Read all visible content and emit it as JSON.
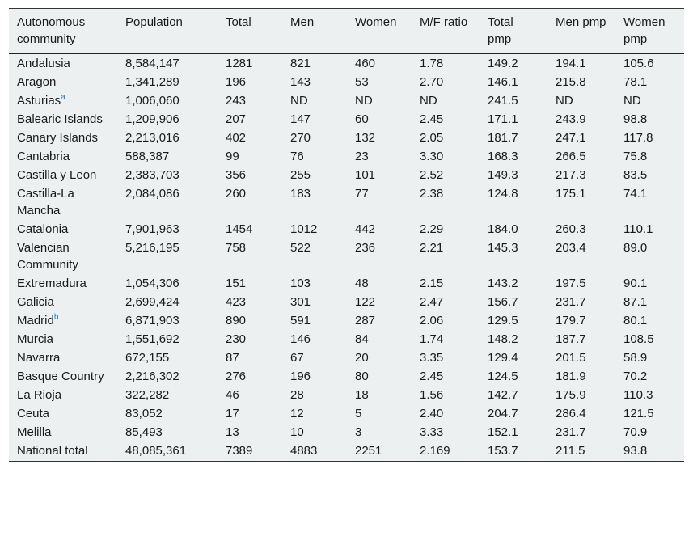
{
  "table": {
    "headers": [
      "Autonomous community",
      "Population",
      "Total",
      "Men",
      "Women",
      "M/F ratio",
      "Total pmp",
      "Men pmp",
      "Women pmp"
    ],
    "rows": [
      {
        "community": "Andalusia",
        "sup": "",
        "population": "8,584,147",
        "total": "1281",
        "men": "821",
        "women": "460",
        "mf_ratio": "1.78",
        "total_pmp": "149.2",
        "men_pmp": "194.1",
        "women_pmp": "105.6"
      },
      {
        "community": "Aragon",
        "sup": "",
        "population": "1,341,289",
        "total": "196",
        "men": "143",
        "women": "53",
        "mf_ratio": "2.70",
        "total_pmp": "146.1",
        "men_pmp": "215.8",
        "women_pmp": "78.1"
      },
      {
        "community": "Asturias",
        "sup": "a",
        "population": "1,006,060",
        "total": "243",
        "men": "ND",
        "women": "ND",
        "mf_ratio": "ND",
        "total_pmp": "241.5",
        "men_pmp": "ND",
        "women_pmp": "ND"
      },
      {
        "community": "Balearic Islands",
        "sup": "",
        "population": "1,209,906",
        "total": "207",
        "men": "147",
        "women": "60",
        "mf_ratio": "2.45",
        "total_pmp": "171.1",
        "men_pmp": "243.9",
        "women_pmp": "98.8"
      },
      {
        "community": "Canary Islands",
        "sup": "",
        "population": "2,213,016",
        "total": "402",
        "men": "270",
        "women": "132",
        "mf_ratio": "2.05",
        "total_pmp": "181.7",
        "men_pmp": "247.1",
        "women_pmp": "117.8"
      },
      {
        "community": "Cantabria",
        "sup": "",
        "population": "588,387",
        "total": "99",
        "men": "76",
        "women": "23",
        "mf_ratio": "3.30",
        "total_pmp": "168.3",
        "men_pmp": "266.5",
        "women_pmp": "75.8"
      },
      {
        "community": "Castilla y Leon",
        "sup": "",
        "population": "2,383,703",
        "total": "356",
        "men": "255",
        "women": "101",
        "mf_ratio": "2.52",
        "total_pmp": "149.3",
        "men_pmp": "217.3",
        "women_pmp": "83.5"
      },
      {
        "community": "Castilla-La Mancha",
        "sup": "",
        "population": "2,084,086",
        "total": "260",
        "men": "183",
        "women": "77",
        "mf_ratio": "2.38",
        "total_pmp": "124.8",
        "men_pmp": "175.1",
        "women_pmp": "74.1"
      },
      {
        "community": "Catalonia",
        "sup": "",
        "population": "7,901,963",
        "total": "1454",
        "men": "1012",
        "women": "442",
        "mf_ratio": "2.29",
        "total_pmp": "184.0",
        "men_pmp": "260.3",
        "women_pmp": "110.1"
      },
      {
        "community": "Valencian Community",
        "sup": "",
        "population": "5,216,195",
        "total": "758",
        "men": "522",
        "women": "236",
        "mf_ratio": "2.21",
        "total_pmp": "145.3",
        "men_pmp": "203.4",
        "women_pmp": "89.0"
      },
      {
        "community": "Extremadura",
        "sup": "",
        "population": "1,054,306",
        "total": "151",
        "men": "103",
        "women": "48",
        "mf_ratio": "2.15",
        "total_pmp": "143.2",
        "men_pmp": "197.5",
        "women_pmp": "90.1"
      },
      {
        "community": "Galicia",
        "sup": "",
        "population": "2,699,424",
        "total": "423",
        "men": "301",
        "women": "122",
        "mf_ratio": "2.47",
        "total_pmp": "156.7",
        "men_pmp": "231.7",
        "women_pmp": "87.1"
      },
      {
        "community": "Madrid",
        "sup": "b",
        "population": "6,871,903",
        "total": "890",
        "men": "591",
        "women": "287",
        "mf_ratio": "2.06",
        "total_pmp": "129.5",
        "men_pmp": "179.7",
        "women_pmp": "80.1"
      },
      {
        "community": "Murcia",
        "sup": "",
        "population": "1,551,692",
        "total": "230",
        "men": "146",
        "women": "84",
        "mf_ratio": "1.74",
        "total_pmp": "148.2",
        "men_pmp": "187.7",
        "women_pmp": "108.5"
      },
      {
        "community": "Navarra",
        "sup": "",
        "population": "672,155",
        "total": "87",
        "men": "67",
        "women": "20",
        "mf_ratio": "3.35",
        "total_pmp": "129.4",
        "men_pmp": "201.5",
        "women_pmp": "58.9"
      },
      {
        "community": "Basque Country",
        "sup": "",
        "population": "2,216,302",
        "total": "276",
        "men": "196",
        "women": "80",
        "mf_ratio": "2.45",
        "total_pmp": "124.5",
        "men_pmp": "181.9",
        "women_pmp": "70.2"
      },
      {
        "community": "La Rioja",
        "sup": "",
        "population": "322,282",
        "total": "46",
        "men": "28",
        "women": "18",
        "mf_ratio": "1.56",
        "total_pmp": "142.7",
        "men_pmp": "175.9",
        "women_pmp": "110.3"
      },
      {
        "community": "Ceuta",
        "sup": "",
        "population": "83,052",
        "total": "17",
        "men": "12",
        "women": "5",
        "mf_ratio": "2.40",
        "total_pmp": "204.7",
        "men_pmp": "286.4",
        "women_pmp": "121.5"
      },
      {
        "community": "Melilla",
        "sup": "",
        "population": "85,493",
        "total": "13",
        "men": "10",
        "women": "3",
        "mf_ratio": "3.33",
        "total_pmp": "152.1",
        "men_pmp": "231.7",
        "women_pmp": "70.9"
      },
      {
        "community": "National total",
        "sup": "",
        "population": "48,085,361",
        "total": "7389",
        "men": "4883",
        "women": "2251",
        "mf_ratio": "2.169",
        "total_pmp": "153.7",
        "men_pmp": "211.5",
        "women_pmp": "93.8"
      }
    ]
  }
}
